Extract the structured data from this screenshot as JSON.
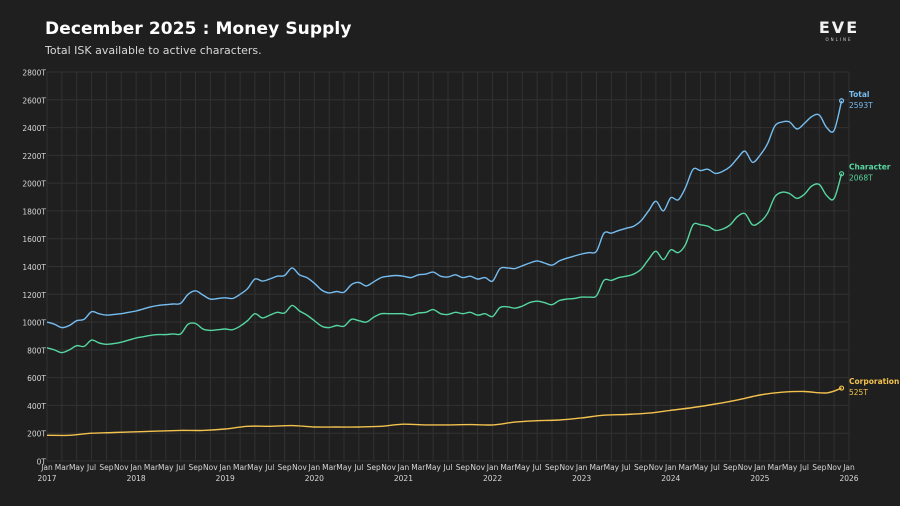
{
  "header": {
    "title": "December 2025 : Money Supply",
    "subtitle": "Total ISK available to active characters."
  },
  "logo": {
    "main": "EVE",
    "sub": "ONLINE"
  },
  "colors": {
    "background": "#1f1f1f",
    "grid": "#323232",
    "total": "#76bdf0",
    "character": "#56d6a0",
    "corporation": "#f2c14e"
  },
  "chart_data": {
    "type": "line",
    "title": "December 2025 : Money Supply",
    "subtitle": "Total ISK available to active characters.",
    "xlabel": "",
    "ylabel": "",
    "ylim": [
      0,
      2800
    ],
    "y_ticks": [
      0,
      200,
      400,
      600,
      800,
      1000,
      1200,
      1400,
      1600,
      1800,
      2000,
      2200,
      2400,
      2600,
      2800
    ],
    "y_tick_labels": [
      "0T",
      "200T",
      "400T",
      "600T",
      "800T",
      "1000T",
      "1200T",
      "1400T",
      "1600T",
      "1800T",
      "2000T",
      "2200T",
      "2400T",
      "2600T",
      "2800T"
    ],
    "x_range": [
      "2017-01",
      "2026-01"
    ],
    "month_tick_labels": [
      "Jan",
      "Mar",
      "May",
      "Jul",
      "Sep",
      "Nov"
    ],
    "year_labels": [
      "2017",
      "2018",
      "2019",
      "2020",
      "2021",
      "2022",
      "2023",
      "2024",
      "2025",
      "2026"
    ],
    "grid": true,
    "series": [
      {
        "name": "Total",
        "end_label": "2593T",
        "points": [
          [
            "2017-01",
            1000
          ],
          [
            "2017-02",
            985
          ],
          [
            "2017-03",
            960
          ],
          [
            "2017-04",
            975
          ],
          [
            "2017-05",
            1010
          ],
          [
            "2017-06",
            1020
          ],
          [
            "2017-07",
            1075
          ],
          [
            "2017-08",
            1060
          ],
          [
            "2017-09",
            1050
          ],
          [
            "2017-10",
            1055
          ],
          [
            "2017-11",
            1060
          ],
          [
            "2017-12",
            1070
          ],
          [
            "2018-01",
            1080
          ],
          [
            "2018-02",
            1095
          ],
          [
            "2018-03",
            1110
          ],
          [
            "2018-04",
            1120
          ],
          [
            "2018-05",
            1125
          ],
          [
            "2018-06",
            1130
          ],
          [
            "2018-07",
            1135
          ],
          [
            "2018-08",
            1200
          ],
          [
            "2018-09",
            1225
          ],
          [
            "2018-10",
            1195
          ],
          [
            "2018-11",
            1165
          ],
          [
            "2018-12",
            1170
          ],
          [
            "2019-01",
            1175
          ],
          [
            "2019-02",
            1170
          ],
          [
            "2019-03",
            1200
          ],
          [
            "2019-04",
            1240
          ],
          [
            "2019-05",
            1310
          ],
          [
            "2019-06",
            1295
          ],
          [
            "2019-07",
            1310
          ],
          [
            "2019-08",
            1330
          ],
          [
            "2019-09",
            1335
          ],
          [
            "2019-10",
            1390
          ],
          [
            "2019-11",
            1340
          ],
          [
            "2019-12",
            1320
          ],
          [
            "2020-01",
            1280
          ],
          [
            "2020-02",
            1230
          ],
          [
            "2020-03",
            1210
          ],
          [
            "2020-04",
            1220
          ],
          [
            "2020-05",
            1215
          ],
          [
            "2020-06",
            1270
          ],
          [
            "2020-07",
            1285
          ],
          [
            "2020-08",
            1260
          ],
          [
            "2020-09",
            1290
          ],
          [
            "2020-10",
            1320
          ],
          [
            "2020-11",
            1330
          ],
          [
            "2020-12",
            1335
          ],
          [
            "2021-01",
            1330
          ],
          [
            "2021-02",
            1320
          ],
          [
            "2021-03",
            1340
          ],
          [
            "2021-04",
            1345
          ],
          [
            "2021-05",
            1360
          ],
          [
            "2021-06",
            1330
          ],
          [
            "2021-07",
            1325
          ],
          [
            "2021-08",
            1340
          ],
          [
            "2021-09",
            1320
          ],
          [
            "2021-10",
            1330
          ],
          [
            "2021-11",
            1310
          ],
          [
            "2021-12",
            1320
          ],
          [
            "2022-01",
            1295
          ],
          [
            "2022-02",
            1385
          ],
          [
            "2022-03",
            1390
          ],
          [
            "2022-04",
            1385
          ],
          [
            "2022-05",
            1405
          ],
          [
            "2022-06",
            1425
          ],
          [
            "2022-07",
            1440
          ],
          [
            "2022-08",
            1425
          ],
          [
            "2022-09",
            1410
          ],
          [
            "2022-10",
            1440
          ],
          [
            "2022-11",
            1460
          ],
          [
            "2022-12",
            1475
          ],
          [
            "2023-01",
            1490
          ],
          [
            "2023-02",
            1500
          ],
          [
            "2023-03",
            1510
          ],
          [
            "2023-04",
            1640
          ],
          [
            "2023-05",
            1640
          ],
          [
            "2023-06",
            1660
          ],
          [
            "2023-07",
            1675
          ],
          [
            "2023-08",
            1690
          ],
          [
            "2023-09",
            1730
          ],
          [
            "2023-10",
            1800
          ],
          [
            "2023-11",
            1870
          ],
          [
            "2023-12",
            1800
          ],
          [
            "2024-01",
            1895
          ],
          [
            "2024-02",
            1880
          ],
          [
            "2024-03",
            1970
          ],
          [
            "2024-04",
            2100
          ],
          [
            "2024-05",
            2090
          ],
          [
            "2024-06",
            2100
          ],
          [
            "2024-07",
            2070
          ],
          [
            "2024-08",
            2085
          ],
          [
            "2024-09",
            2120
          ],
          [
            "2024-10",
            2180
          ],
          [
            "2024-11",
            2230
          ],
          [
            "2024-12",
            2150
          ],
          [
            "2025-01",
            2200
          ],
          [
            "2025-02",
            2280
          ],
          [
            "2025-03",
            2410
          ],
          [
            "2025-04",
            2440
          ],
          [
            "2025-05",
            2440
          ],
          [
            "2025-06",
            2390
          ],
          [
            "2025-07",
            2430
          ],
          [
            "2025-08",
            2480
          ],
          [
            "2025-09",
            2490
          ],
          [
            "2025-10",
            2400
          ],
          [
            "2025-11",
            2380
          ],
          [
            "2025-12",
            2593
          ]
        ]
      },
      {
        "name": "Character",
        "end_label": "2068T",
        "points": [
          [
            "2017-01",
            815
          ],
          [
            "2017-02",
            800
          ],
          [
            "2017-03",
            780
          ],
          [
            "2017-04",
            800
          ],
          [
            "2017-05",
            830
          ],
          [
            "2017-06",
            825
          ],
          [
            "2017-07",
            870
          ],
          [
            "2017-08",
            850
          ],
          [
            "2017-09",
            840
          ],
          [
            "2017-10",
            845
          ],
          [
            "2017-11",
            855
          ],
          [
            "2017-12",
            870
          ],
          [
            "2018-01",
            885
          ],
          [
            "2018-02",
            895
          ],
          [
            "2018-03",
            905
          ],
          [
            "2018-04",
            910
          ],
          [
            "2018-05",
            910
          ],
          [
            "2018-06",
            915
          ],
          [
            "2018-07",
            915
          ],
          [
            "2018-08",
            985
          ],
          [
            "2018-09",
            990
          ],
          [
            "2018-10",
            950
          ],
          [
            "2018-11",
            940
          ],
          [
            "2018-12",
            945
          ],
          [
            "2019-01",
            950
          ],
          [
            "2019-02",
            945
          ],
          [
            "2019-03",
            970
          ],
          [
            "2019-04",
            1010
          ],
          [
            "2019-05",
            1060
          ],
          [
            "2019-06",
            1030
          ],
          [
            "2019-07",
            1050
          ],
          [
            "2019-08",
            1070
          ],
          [
            "2019-09",
            1065
          ],
          [
            "2019-10",
            1120
          ],
          [
            "2019-11",
            1080
          ],
          [
            "2019-12",
            1050
          ],
          [
            "2020-01",
            1010
          ],
          [
            "2020-02",
            970
          ],
          [
            "2020-03",
            960
          ],
          [
            "2020-04",
            975
          ],
          [
            "2020-05",
            970
          ],
          [
            "2020-06",
            1020
          ],
          [
            "2020-07",
            1010
          ],
          [
            "2020-08",
            1000
          ],
          [
            "2020-09",
            1035
          ],
          [
            "2020-10",
            1060
          ],
          [
            "2020-11",
            1060
          ],
          [
            "2020-12",
            1060
          ],
          [
            "2021-01",
            1060
          ],
          [
            "2021-02",
            1050
          ],
          [
            "2021-03",
            1065
          ],
          [
            "2021-04",
            1070
          ],
          [
            "2021-05",
            1090
          ],
          [
            "2021-06",
            1060
          ],
          [
            "2021-07",
            1055
          ],
          [
            "2021-08",
            1070
          ],
          [
            "2021-09",
            1060
          ],
          [
            "2021-10",
            1070
          ],
          [
            "2021-11",
            1050
          ],
          [
            "2021-12",
            1060
          ],
          [
            "2022-01",
            1040
          ],
          [
            "2022-02",
            1105
          ],
          [
            "2022-03",
            1110
          ],
          [
            "2022-04",
            1100
          ],
          [
            "2022-05",
            1115
          ],
          [
            "2022-06",
            1140
          ],
          [
            "2022-07",
            1150
          ],
          [
            "2022-08",
            1140
          ],
          [
            "2022-09",
            1125
          ],
          [
            "2022-10",
            1155
          ],
          [
            "2022-11",
            1165
          ],
          [
            "2022-12",
            1170
          ],
          [
            "2023-01",
            1180
          ],
          [
            "2023-02",
            1180
          ],
          [
            "2023-03",
            1190
          ],
          [
            "2023-04",
            1300
          ],
          [
            "2023-05",
            1300
          ],
          [
            "2023-06",
            1320
          ],
          [
            "2023-07",
            1330
          ],
          [
            "2023-08",
            1345
          ],
          [
            "2023-09",
            1380
          ],
          [
            "2023-10",
            1450
          ],
          [
            "2023-11",
            1510
          ],
          [
            "2023-12",
            1450
          ],
          [
            "2024-01",
            1520
          ],
          [
            "2024-02",
            1500
          ],
          [
            "2024-03",
            1560
          ],
          [
            "2024-04",
            1700
          ],
          [
            "2024-05",
            1700
          ],
          [
            "2024-06",
            1690
          ],
          [
            "2024-07",
            1660
          ],
          [
            "2024-08",
            1670
          ],
          [
            "2024-09",
            1700
          ],
          [
            "2024-10",
            1760
          ],
          [
            "2024-11",
            1780
          ],
          [
            "2024-12",
            1700
          ],
          [
            "2025-01",
            1720
          ],
          [
            "2025-02",
            1780
          ],
          [
            "2025-03",
            1900
          ],
          [
            "2025-04",
            1935
          ],
          [
            "2025-05",
            1925
          ],
          [
            "2025-06",
            1890
          ],
          [
            "2025-07",
            1920
          ],
          [
            "2025-08",
            1980
          ],
          [
            "2025-09",
            1990
          ],
          [
            "2025-10",
            1910
          ],
          [
            "2025-11",
            1890
          ],
          [
            "2025-12",
            2068
          ]
        ]
      },
      {
        "name": "Corporation",
        "end_label": "525T",
        "points": [
          [
            "2017-01",
            185
          ],
          [
            "2017-04",
            185
          ],
          [
            "2017-07",
            200
          ],
          [
            "2017-10",
            205
          ],
          [
            "2018-01",
            210
          ],
          [
            "2018-04",
            215
          ],
          [
            "2018-07",
            220
          ],
          [
            "2018-10",
            220
          ],
          [
            "2019-01",
            230
          ],
          [
            "2019-04",
            250
          ],
          [
            "2019-07",
            250
          ],
          [
            "2019-10",
            255
          ],
          [
            "2020-01",
            245
          ],
          [
            "2020-04",
            245
          ],
          [
            "2020-07",
            245
          ],
          [
            "2020-10",
            250
          ],
          [
            "2021-01",
            265
          ],
          [
            "2021-04",
            260
          ],
          [
            "2021-07",
            260
          ],
          [
            "2021-10",
            262
          ],
          [
            "2022-01",
            260
          ],
          [
            "2022-04",
            280
          ],
          [
            "2022-07",
            290
          ],
          [
            "2022-10",
            295
          ],
          [
            "2023-01",
            310
          ],
          [
            "2023-04",
            330
          ],
          [
            "2023-07",
            335
          ],
          [
            "2023-10",
            345
          ],
          [
            "2024-01",
            365
          ],
          [
            "2024-04",
            385
          ],
          [
            "2024-07",
            410
          ],
          [
            "2024-10",
            440
          ],
          [
            "2025-01",
            475
          ],
          [
            "2025-04",
            495
          ],
          [
            "2025-07",
            500
          ],
          [
            "2025-10",
            490
          ],
          [
            "2025-12",
            525
          ]
        ]
      }
    ]
  }
}
